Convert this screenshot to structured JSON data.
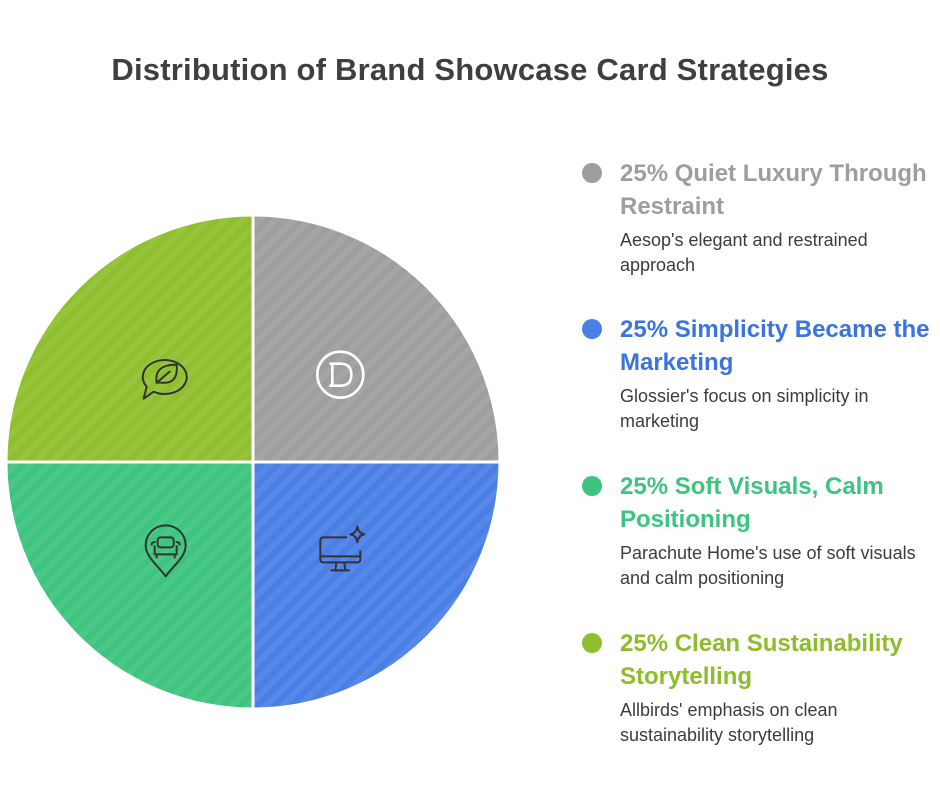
{
  "chart_data": {
    "type": "pie",
    "title": "Distribution of Brand Showcase Card Strategies",
    "slices": [
      {
        "label": "Quiet Luxury Through Restraint",
        "percent_label": "25%",
        "value": 25,
        "color": "#9e9e9e",
        "icon": "brand-d-icon",
        "description": "Aesop's elegant and restrained approach"
      },
      {
        "label": "Simplicity Became the Marketing",
        "percent_label": "25%",
        "value": 25,
        "color": "#4a7fe6",
        "icon": "monitor-sparkle-icon",
        "description": "Glossier's focus on simplicity in marketing"
      },
      {
        "label": "Soft Visuals, Calm Positioning",
        "percent_label": "25%",
        "value": 25,
        "color": "#3dc47e",
        "icon": "sofa-pin-icon",
        "description": "Parachute Home's use of soft visuals and calm positioning"
      },
      {
        "label": "Clean Sustainability Storytelling",
        "percent_label": "25%",
        "value": 25,
        "color": "#8fbf2e",
        "icon": "leaf-chat-icon",
        "description": "Allbirds' emphasis on clean sustainability storytelling"
      }
    ],
    "legend_placement": "right",
    "legend_title_colors": [
      "#9e9e9e",
      "#3a74e0",
      "#3dc47e",
      "#8dbd2b"
    ]
  }
}
